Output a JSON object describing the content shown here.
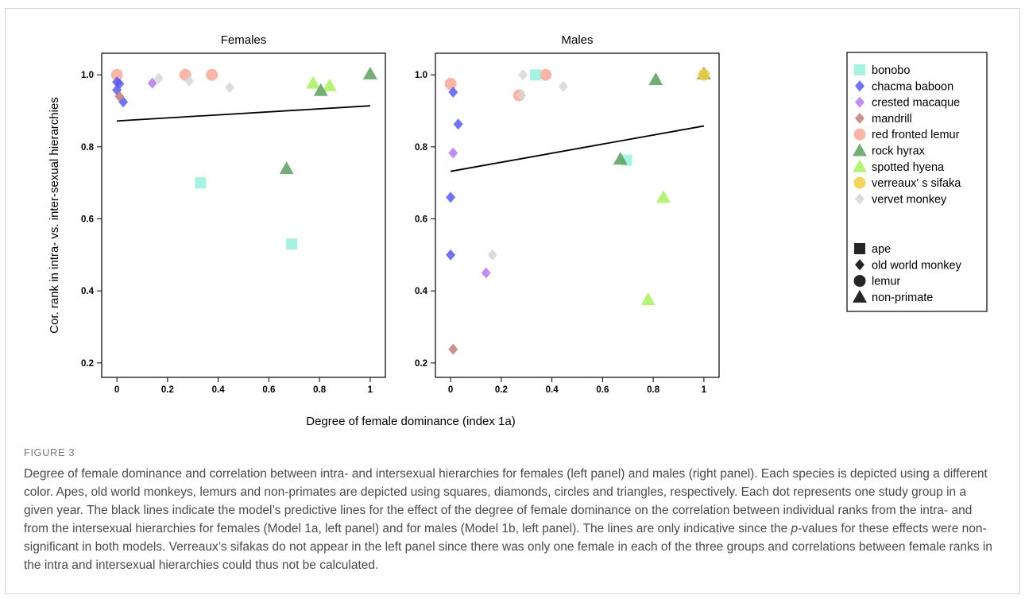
{
  "chart_data": {
    "type": "scatter",
    "xlabel": "Degree of female dominance (index 1a)",
    "ylabel": "Cor. rank in intra- vs. inter-sexual hierarchies",
    "xlim": [
      -0.06,
      1.06
    ],
    "ylim": [
      0.16,
      1.06
    ],
    "xticks": [
      "0",
      "0.2",
      "0.4",
      "0.6",
      "0.8",
      "1"
    ],
    "yticks": [
      "0.2",
      "0.4",
      "0.6",
      "0.8",
      "1.0"
    ],
    "grid": false,
    "legend_placement": "right",
    "species": [
      {
        "name": "bonobo",
        "color": "#98f0dc",
        "group": "ape"
      },
      {
        "name": "chacma baboon",
        "color": "#5b5bf0",
        "group": "old world monkey"
      },
      {
        "name": "crested macaque",
        "color": "#b57aea",
        "group": "old world monkey"
      },
      {
        "name": "mandrill",
        "color": "#c07c7c",
        "group": "old world monkey"
      },
      {
        "name": "red fronted lemur",
        "color": "#f7a99a",
        "group": "lemur"
      },
      {
        "name": "rock hyrax",
        "color": "#5e9e5e",
        "group": "non-primate"
      },
      {
        "name": "spotted hyena",
        "color": "#aaf060",
        "group": "non-primate"
      },
      {
        "name": "verreaux' s sifaka",
        "color": "#f2cc45",
        "group": "lemur"
      },
      {
        "name": "vervet monkey",
        "color": "#d6d6d6",
        "group": "old world monkey"
      }
    ],
    "groups": [
      {
        "name": "ape",
        "shape": "square"
      },
      {
        "name": "old world monkey",
        "shape": "diamond"
      },
      {
        "name": "lemur",
        "shape": "circle"
      },
      {
        "name": "non-primate",
        "shape": "triangle"
      }
    ],
    "panels": [
      {
        "title": "Females",
        "line": {
          "x0": 0,
          "y0": 0.872,
          "x1": 1,
          "y1": 0.914
        },
        "points": [
          {
            "species": "red fronted lemur",
            "x": 0.0,
            "y": 1.0
          },
          {
            "species": "red fronted lemur",
            "x": 0.27,
            "y": 1.0
          },
          {
            "species": "red fronted lemur",
            "x": 0.375,
            "y": 1.0
          },
          {
            "species": "chacma baboon",
            "x": 0.0,
            "y": 0.98
          },
          {
            "species": "chacma baboon",
            "x": 0.01,
            "y": 0.975
          },
          {
            "species": "chacma baboon",
            "x": 0.0,
            "y": 0.958
          },
          {
            "species": "chacma baboon",
            "x": 0.025,
            "y": 0.925
          },
          {
            "species": "mandrill",
            "x": 0.01,
            "y": 0.94
          },
          {
            "species": "crested macaque",
            "x": 0.14,
            "y": 0.977
          },
          {
            "species": "vervet monkey",
            "x": 0.165,
            "y": 0.99
          },
          {
            "species": "vervet monkey",
            "x": 0.285,
            "y": 0.983
          },
          {
            "species": "vervet monkey",
            "x": 0.445,
            "y": 0.965
          },
          {
            "species": "spotted hyena",
            "x": 0.775,
            "y": 0.977
          },
          {
            "species": "spotted hyena",
            "x": 0.84,
            "y": 0.97
          },
          {
            "species": "rock hyrax",
            "x": 0.805,
            "y": 0.957
          },
          {
            "species": "rock hyrax",
            "x": 1.0,
            "y": 1.003
          },
          {
            "species": "rock hyrax",
            "x": 0.67,
            "y": 0.74
          },
          {
            "species": "bonobo",
            "x": 0.33,
            "y": 0.7
          },
          {
            "species": "bonobo",
            "x": 0.69,
            "y": 0.53
          }
        ]
      },
      {
        "title": "Males",
        "line": {
          "x0": 0,
          "y0": 0.732,
          "x1": 1,
          "y1": 0.858
        },
        "points": [
          {
            "species": "red fronted lemur",
            "x": 0.0,
            "y": 0.975
          },
          {
            "species": "red fronted lemur",
            "x": 0.27,
            "y": 0.943
          },
          {
            "species": "red fronted lemur",
            "x": 0.375,
            "y": 1.0
          },
          {
            "species": "vervet monkey",
            "x": 0.28,
            "y": 0.943
          },
          {
            "species": "vervet monkey",
            "x": 0.285,
            "y": 1.0
          },
          {
            "species": "vervet monkey",
            "x": 0.445,
            "y": 0.968
          },
          {
            "species": "vervet monkey",
            "x": 0.165,
            "y": 0.5
          },
          {
            "species": "bonobo",
            "x": 0.335,
            "y": 1.0
          },
          {
            "species": "bonobo",
            "x": 0.695,
            "y": 0.763
          },
          {
            "species": "chacma baboon",
            "x": 0.01,
            "y": 0.952
          },
          {
            "species": "chacma baboon",
            "x": 0.03,
            "y": 0.863
          },
          {
            "species": "chacma baboon",
            "x": 0.0,
            "y": 0.66
          },
          {
            "species": "chacma baboon",
            "x": 0.0,
            "y": 0.5
          },
          {
            "species": "crested macaque",
            "x": 0.01,
            "y": 0.783
          },
          {
            "species": "crested macaque",
            "x": 0.14,
            "y": 0.45
          },
          {
            "species": "mandrill",
            "x": 0.01,
            "y": 0.238
          },
          {
            "species": "rock hyrax",
            "x": 0.81,
            "y": 0.987
          },
          {
            "species": "rock hyrax",
            "x": 0.67,
            "y": 0.766
          },
          {
            "species": "rock hyrax",
            "x": 1.0,
            "y": 1.003
          },
          {
            "species": "spotted hyena",
            "x": 0.84,
            "y": 0.66
          },
          {
            "species": "spotted hyena",
            "x": 0.78,
            "y": 0.376
          },
          {
            "species": "verreaux' s sifaka",
            "x": 1.0,
            "y": 1.0
          }
        ]
      }
    ]
  },
  "caption": {
    "label": "FIGURE 3",
    "before_p": "Degree of female dominance and correlation between intra- and intersexual hierarchies for females (left panel) and males (right panel). Each species is depicted using a different color. Apes, old world monkeys, lemurs and non-primates are depicted using squares, diamonds, circles and triangles, respectively. Each dot represents one study group in a given year. The black lines indicate the model’s predictive lines for the effect of the degree of female dominance on the correlation between individual ranks from the intra- and from the intersexual hierarchies for females (Model 1a, left panel) and for males (Model 1b, left panel). The lines are only indicative since the ",
    "p_italic": "p",
    "after_p": "-values for these effects were non-significant in both models. Verreaux’s sifakas do not appear in the left panel since there was only one female in each of the three groups and correlations between female ranks in the intra and intersexual hierarchies could thus not be calculated."
  }
}
